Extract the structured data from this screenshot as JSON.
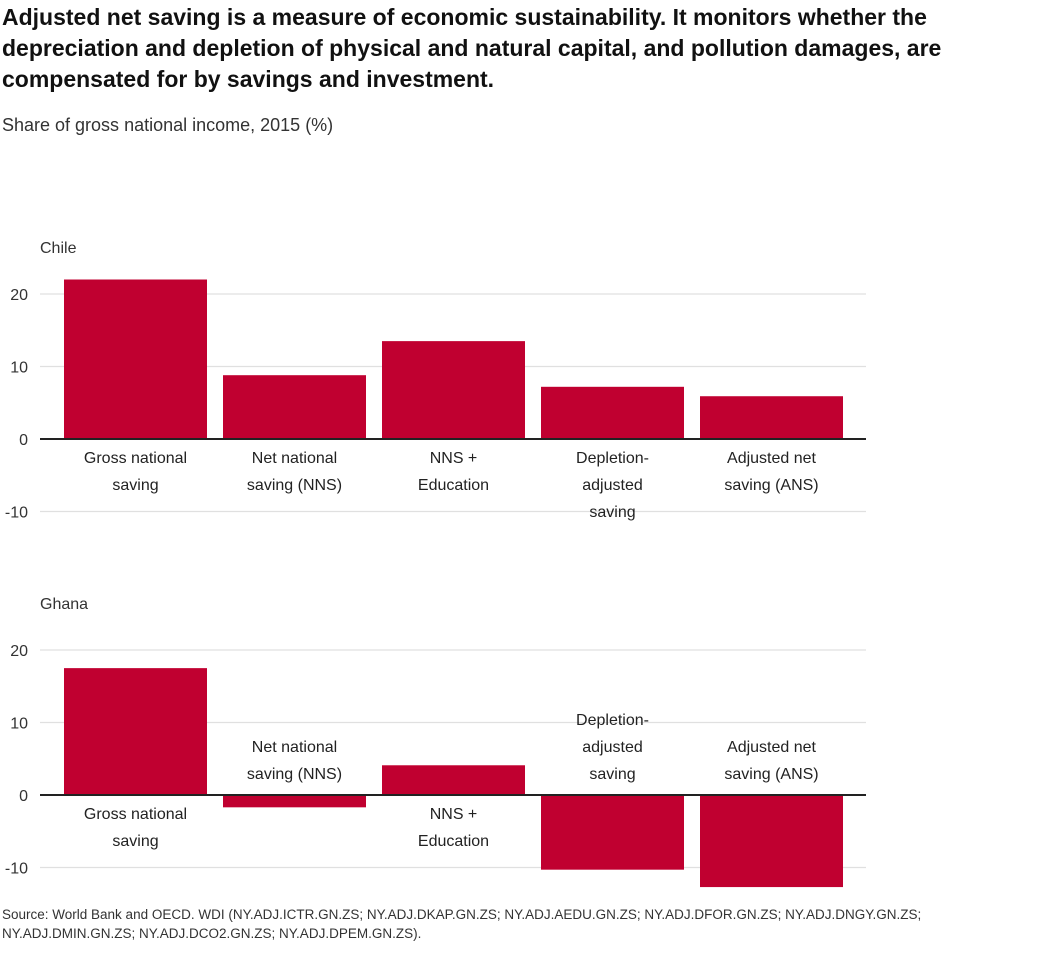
{
  "title": "Adjusted net saving is a measure of economic sustainability. It monitors whether the depreciation and depletion of physical and natural capital, and pollution damages, are compensated for by savings and investment.",
  "subtitle": "Share of gross national income, 2015 (%)",
  "source": "Source: World Bank and OECD. WDI (NY.ADJ.ICTR.GN.ZS; NY.ADJ.DKAP.GN.ZS; NY.ADJ.AEDU.GN.ZS; NY.ADJ.DFOR.GN.ZS; NY.ADJ.DNGY.GN.ZS; NY.ADJ.DMIN.GN.ZS; NY.ADJ.DCO2.GN.ZS; NY.ADJ.DPEM.GN.ZS).",
  "colors": {
    "bar": "#c00030",
    "grid": "#e0e0e0",
    "axis": "#222222"
  },
  "chart_data": [
    {
      "type": "bar",
      "panel": "Chile",
      "categories": [
        [
          "Gross national",
          "saving"
        ],
        [
          "Net national",
          "saving (NNS)"
        ],
        [
          "NNS +",
          "Education"
        ],
        [
          "Depletion-",
          "adjusted",
          "saving"
        ],
        [
          "Adjusted net",
          "saving (ANS)"
        ]
      ],
      "values": [
        22.0,
        8.8,
        13.5,
        7.2,
        5.9
      ],
      "ylim": [
        -10,
        22
      ],
      "yticks": [
        -10,
        0,
        10,
        20
      ],
      "grid": true,
      "legend": "none"
    },
    {
      "type": "bar",
      "panel": "Ghana",
      "categories": [
        [
          "Gross national",
          "saving"
        ],
        [
          "Net national",
          "saving (NNS)"
        ],
        [
          "NNS +",
          "Education"
        ],
        [
          "Depletion-",
          "adjusted",
          "saving"
        ],
        [
          "Adjusted net",
          "saving (ANS)"
        ]
      ],
      "values": [
        17.5,
        -1.7,
        4.1,
        -10.3,
        -12.7
      ],
      "ylim": [
        -12.7,
        20
      ],
      "yticks": [
        -10,
        0,
        10,
        20
      ],
      "grid": true,
      "legend": "none"
    }
  ]
}
